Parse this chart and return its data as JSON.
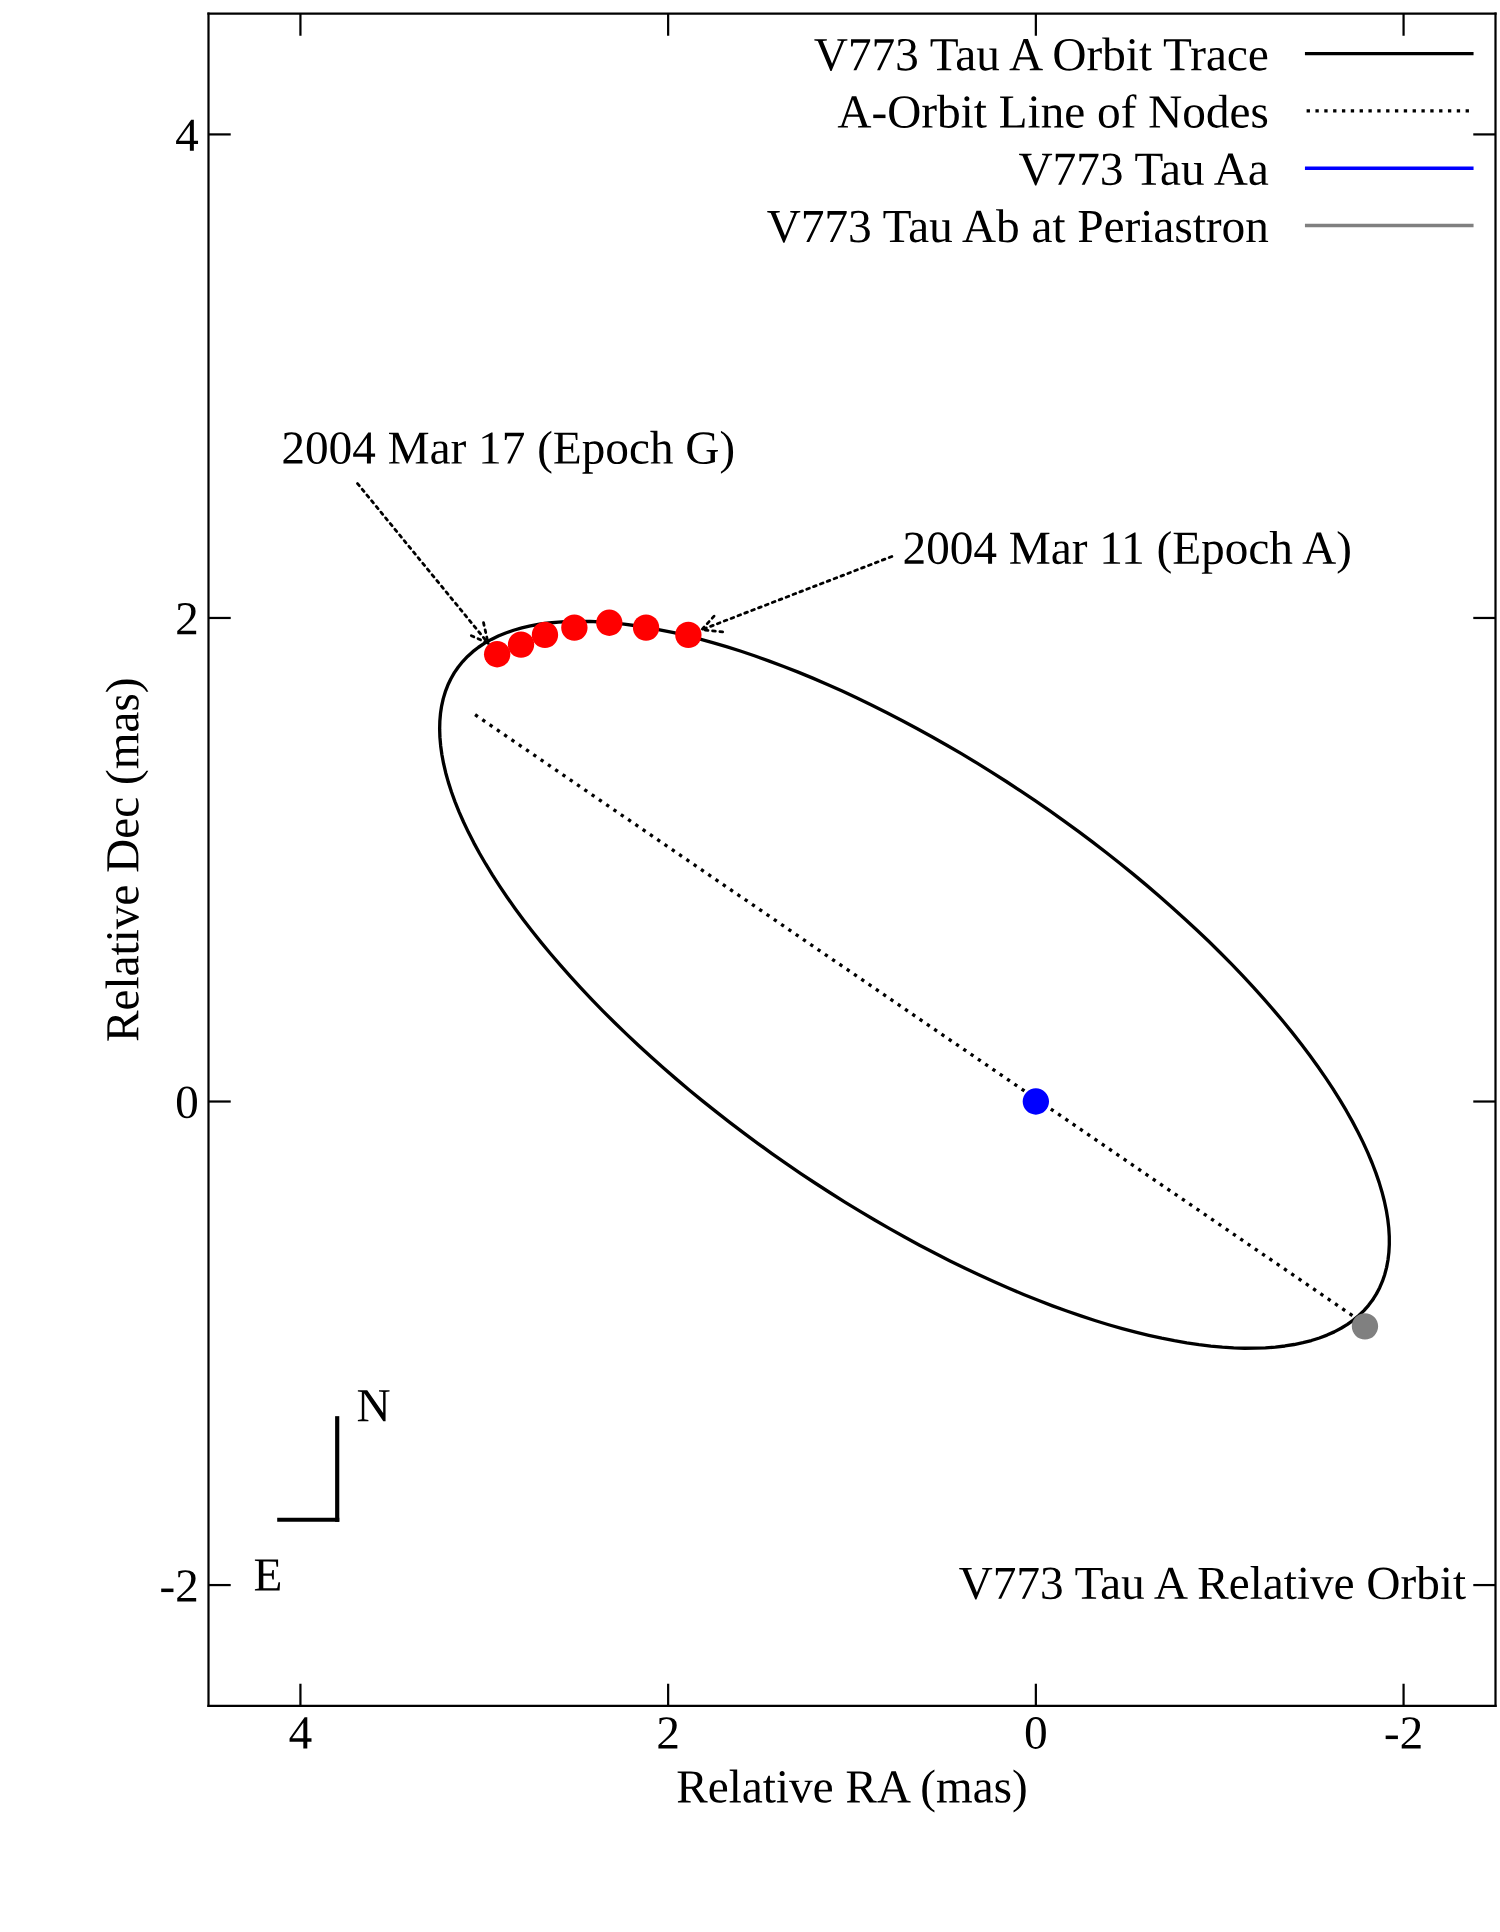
{
  "chart_data": {
    "type": "line",
    "xlabel": "Relative RA (mas)",
    "ylabel": "Relative Dec (mas)",
    "xlim": [
      4.5,
      -2.5
    ],
    "ylim": [
      -2.5,
      4.5
    ],
    "xticks": [
      4,
      2,
      0,
      -2
    ],
    "yticks": [
      -2,
      0,
      2,
      4
    ],
    "grid": false,
    "legend": "top right",
    "series": [
      {
        "name": "V773 Tau A Orbit Trace",
        "type": "other",
        "line_style": "solid",
        "color": "#000000"
      },
      {
        "name": "A-Orbit Line of Nodes",
        "line_style": "dotted",
        "color": "#000000",
        "x": [
          3.05,
          -1.75
        ],
        "values": [
          1.6,
          -0.9
        ]
      },
      {
        "name": "V773 Tau Aa",
        "type": "scatter",
        "marker": "circle",
        "color": "#0000ff",
        "x": [
          0
        ],
        "values": [
          0
        ]
      },
      {
        "name": "V773 Tau Ab at Periastron",
        "type": "scatter",
        "marker": "circle",
        "color": "#808080",
        "x": [
          -1.79
        ],
        "values": [
          -0.93
        ]
      },
      {
        "type": "scatter",
        "marker": "circle",
        "color": "#ff0000",
        "x": [
          2.93,
          2.8,
          2.67,
          2.51,
          2.32,
          2.12,
          1.89
        ],
        "values": [
          1.85,
          1.89,
          1.93,
          1.96,
          1.98,
          1.96,
          1.93
        ]
      }
    ],
    "annotations": [
      {
        "text": "2004 Mar 17 (Epoch G)",
        "x": 2.93,
        "y": 1.85
      },
      {
        "text": "2004 Mar 11 (Epoch A)",
        "x": 1.89,
        "y": 1.93
      },
      "N",
      "E",
      "V773 Tau A Relative Orbit"
    ]
  }
}
